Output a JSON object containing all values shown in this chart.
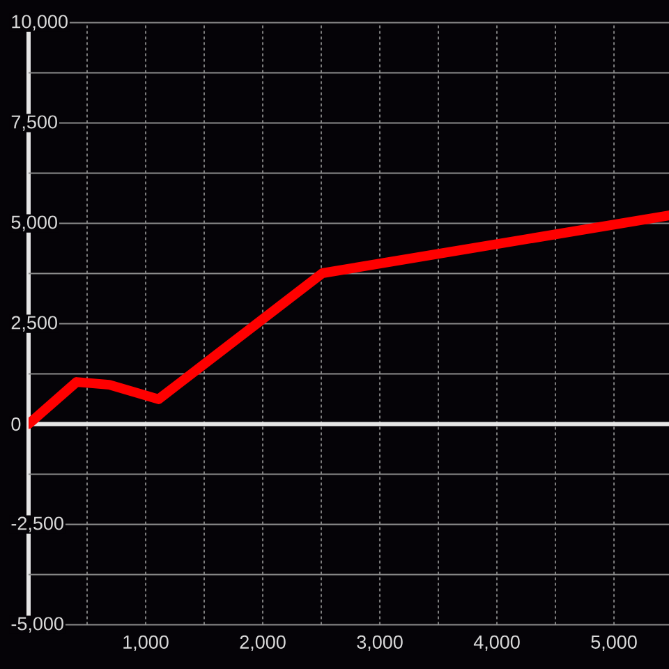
{
  "chart_data": {
    "type": "line",
    "x": [
      0,
      410,
      690,
      1110,
      2510,
      5470
    ],
    "values": [
      0,
      1050,
      980,
      620,
      3760,
      5200
    ],
    "color": "#ff0000",
    "xlim": [
      0,
      5470
    ],
    "ylim": [
      -5000,
      10000
    ],
    "xticks": [
      {
        "value": 500,
        "label": null
      },
      {
        "value": 1000,
        "label": "1,000"
      },
      {
        "value": 1500,
        "label": null
      },
      {
        "value": 2000,
        "label": "2,000"
      },
      {
        "value": 2500,
        "label": null
      },
      {
        "value": 3000,
        "label": "3,000"
      },
      {
        "value": 3500,
        "label": null
      },
      {
        "value": 4000,
        "label": "4,000"
      },
      {
        "value": 4500,
        "label": null
      },
      {
        "value": 5000,
        "label": "5,000"
      }
    ],
    "yticks": [
      {
        "value": -5000,
        "label": "-5,000"
      },
      {
        "value": -3750,
        "label": null
      },
      {
        "value": -2500,
        "label": "-2,500"
      },
      {
        "value": -1250,
        "label": null
      },
      0,
      {
        "value": 1250,
        "label": null
      },
      {
        "value": 2500,
        "label": "2,500"
      },
      {
        "value": 3750,
        "label": null
      },
      {
        "value": 5000,
        "label": "5,000"
      },
      {
        "value": 6250,
        "label": null
      },
      {
        "value": 7500,
        "label": "7,500"
      },
      {
        "value": 8750,
        "label": null
      },
      {
        "value": 10000,
        "label": "10,000"
      }
    ],
    "grid": true,
    "marker": "none",
    "line_style": "solid"
  }
}
